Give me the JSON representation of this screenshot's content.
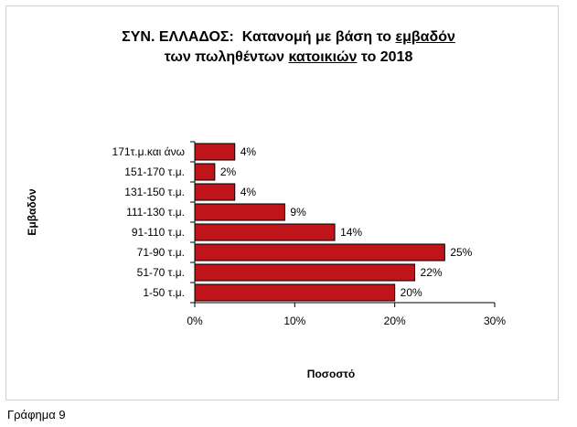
{
  "chart_data": {
    "type": "bar",
    "orientation": "horizontal",
    "title_parts": [
      {
        "line": 1,
        "segments": [
          {
            "text": "ΣΥΝ. ΕΛΛΑΔΟΣ:  Κατανομή με βάση το ",
            "underline": false
          },
          {
            "text": "εμβαδόν",
            "underline": true
          }
        ]
      },
      {
        "line": 2,
        "segments": [
          {
            "text": "των πωληθέντων ",
            "underline": false
          },
          {
            "text": "κατοικιών",
            "underline": true
          },
          {
            "text": " το 2018",
            "underline": false
          }
        ]
      }
    ],
    "categories": [
      "1-50 τ.μ.",
      "51-70 τ.μ.",
      "71-90 τ.μ.",
      "91-110 τ.μ.",
      "111-130 τ.μ.",
      "131-150 τ.μ.",
      "151-170 τ.μ.",
      "171τ.μ.και άνω"
    ],
    "values": [
      20,
      22,
      25,
      14,
      9,
      4,
      2,
      4
    ],
    "data_labels": [
      "20%",
      "22%",
      "25%",
      "14%",
      "9%",
      "4%",
      "2%",
      "4%"
    ],
    "xlabel": "Ποσοστό",
    "ylabel": "Εμβαδόν",
    "xlim": [
      0,
      30
    ],
    "xticks": [
      0,
      10,
      20,
      30
    ],
    "xtick_labels": [
      "0%",
      "10%",
      "20%",
      "30%"
    ],
    "grid": false,
    "bar_color": "#c0141b",
    "bar_edge_color": "#000000"
  },
  "caption": "Γράφημα 9"
}
